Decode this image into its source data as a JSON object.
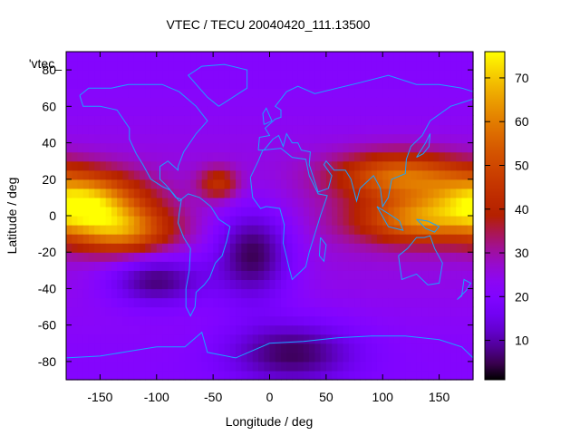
{
  "chart_data": {
    "type": "heatmap",
    "title": "VTEC / TECU 20040420_111.13500",
    "xlabel": "Longitude / deg",
    "ylabel": "Latitude / deg",
    "legend_label": "'vtec_",
    "xlim": [
      -180,
      180
    ],
    "ylim": [
      -90,
      90
    ],
    "x_ticks": [
      -150,
      -100,
      -50,
      0,
      50,
      100,
      150
    ],
    "y_ticks": [
      -80,
      -60,
      -40,
      -20,
      0,
      20,
      40,
      60,
      80
    ],
    "colorbar": {
      "range": [
        1,
        76
      ],
      "ticks": [
        10,
        20,
        30,
        40,
        50,
        60,
        70
      ],
      "palette": "black-purple-red-orange-yellow"
    },
    "grid": false,
    "grid_resolution": {
      "lon_step": 5,
      "lat_step": 5
    },
    "features": [
      {
        "lon": -165,
        "lat": 8,
        "tec": 68,
        "lon_spread": 35,
        "lat_spread": 11
      },
      {
        "lon": -130,
        "lat": -8,
        "tec": 55,
        "lon_spread": 30,
        "lat_spread": 9
      },
      {
        "lon": 115,
        "lat": 22,
        "tec": 55,
        "lon_spread": 40,
        "lat_spread": 9
      },
      {
        "lon": 130,
        "lat": -2,
        "tec": 55,
        "lon_spread": 38,
        "lat_spread": 9
      },
      {
        "lon": -45,
        "lat": 18,
        "tec": 42,
        "lon_spread": 12,
        "lat_spread": 6
      },
      {
        "lon": -15,
        "lat": -20,
        "tec": 3,
        "lon_spread": 25,
        "lat_spread": 18
      },
      {
        "lon": -100,
        "lat": -35,
        "tec": 6,
        "lon_spread": 30,
        "lat_spread": 10
      },
      {
        "lon": 20,
        "lat": -75,
        "tec": 8,
        "lon_spread": 40,
        "lat_spread": 12
      }
    ],
    "background_tec": 24
  },
  "colors": {
    "coastline": "#1aa3ff",
    "frame": "#000000"
  }
}
